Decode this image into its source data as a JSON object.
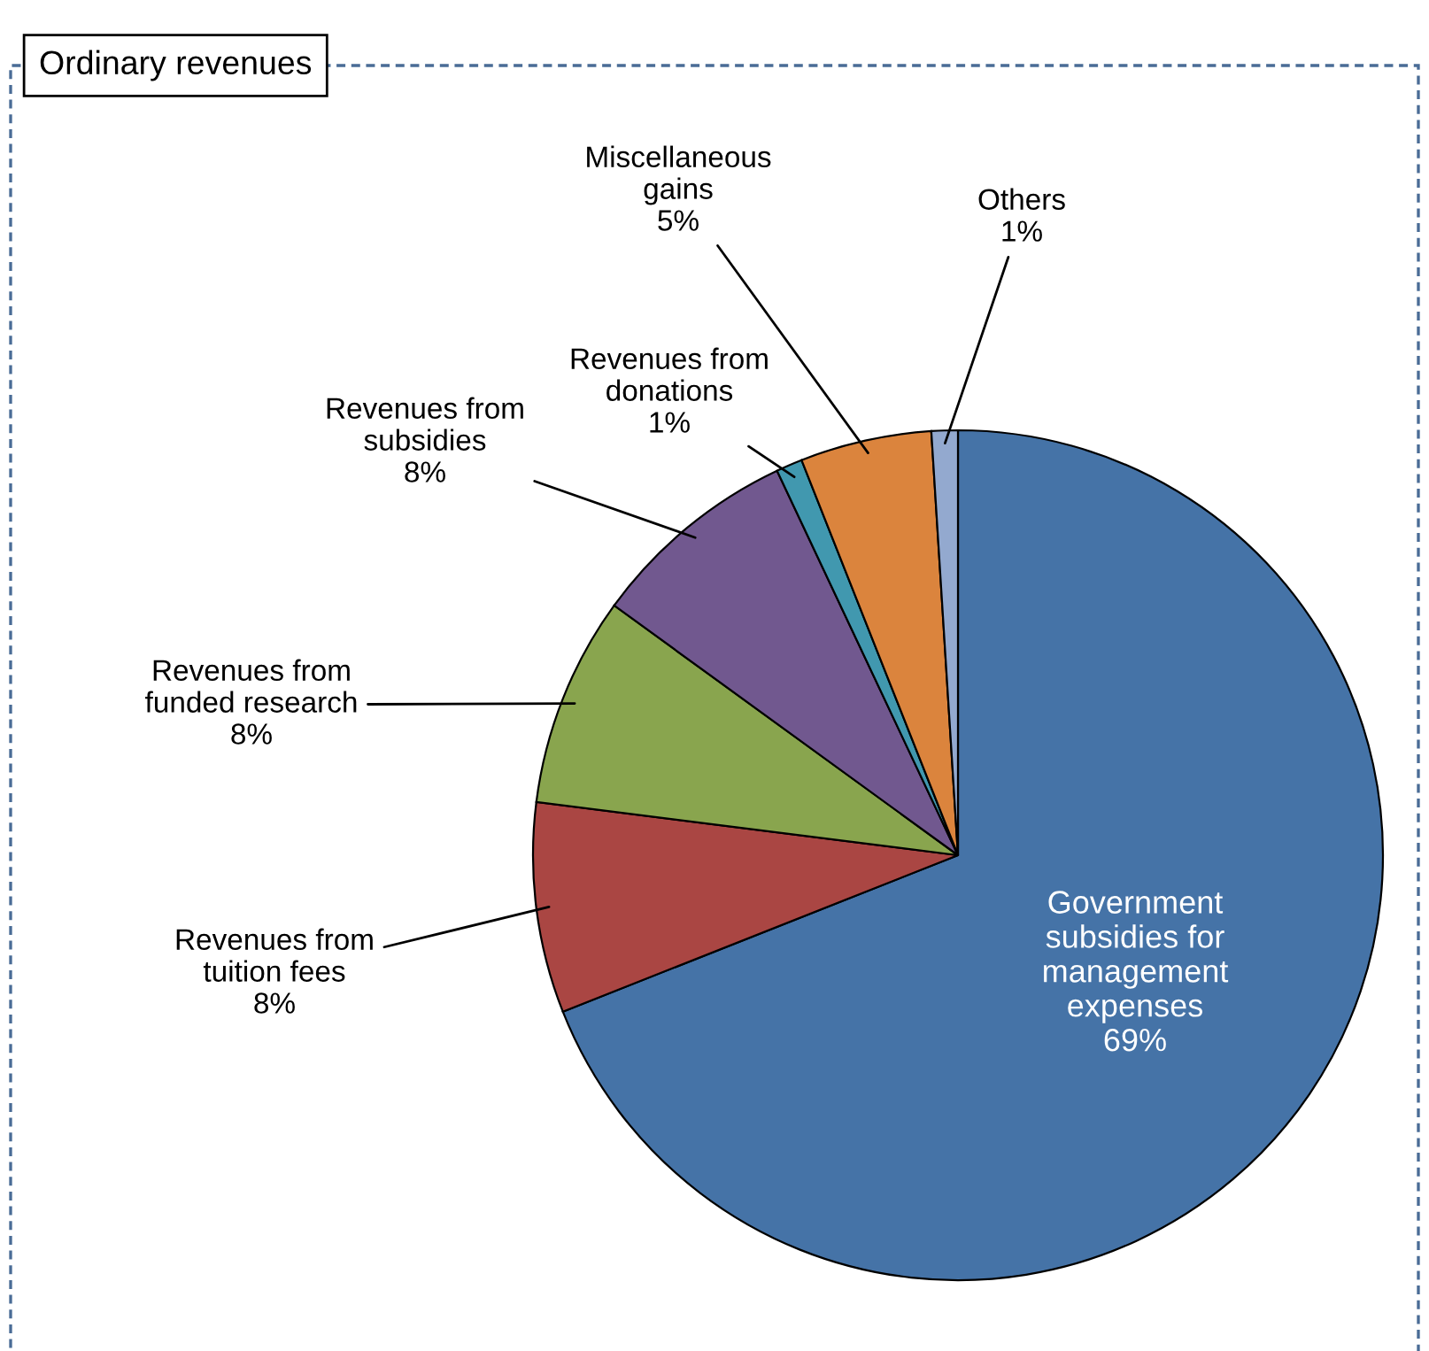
{
  "chart_data": {
    "type": "pie",
    "title": "Ordinary revenues",
    "categories": [
      "Government\nsubsidies for\nmanagement\nexpenses",
      "Revenues from\ntuition fees",
      "Revenues from\nfunded research",
      "Revenues from\nsubsidies",
      "Revenues from\ndonations",
      "Miscellaneous\ngains",
      "Others"
    ],
    "values": [
      69,
      8,
      8,
      8,
      1,
      5,
      1
    ],
    "value_labels": [
      "69%",
      "8%",
      "8%",
      "8%",
      "1%",
      "5%",
      "1%"
    ],
    "colors": [
      "#4573a7",
      "#aa4643",
      "#89a54e",
      "#71588f",
      "#4198af",
      "#db843d",
      "#93a9cf"
    ],
    "legend": false
  }
}
